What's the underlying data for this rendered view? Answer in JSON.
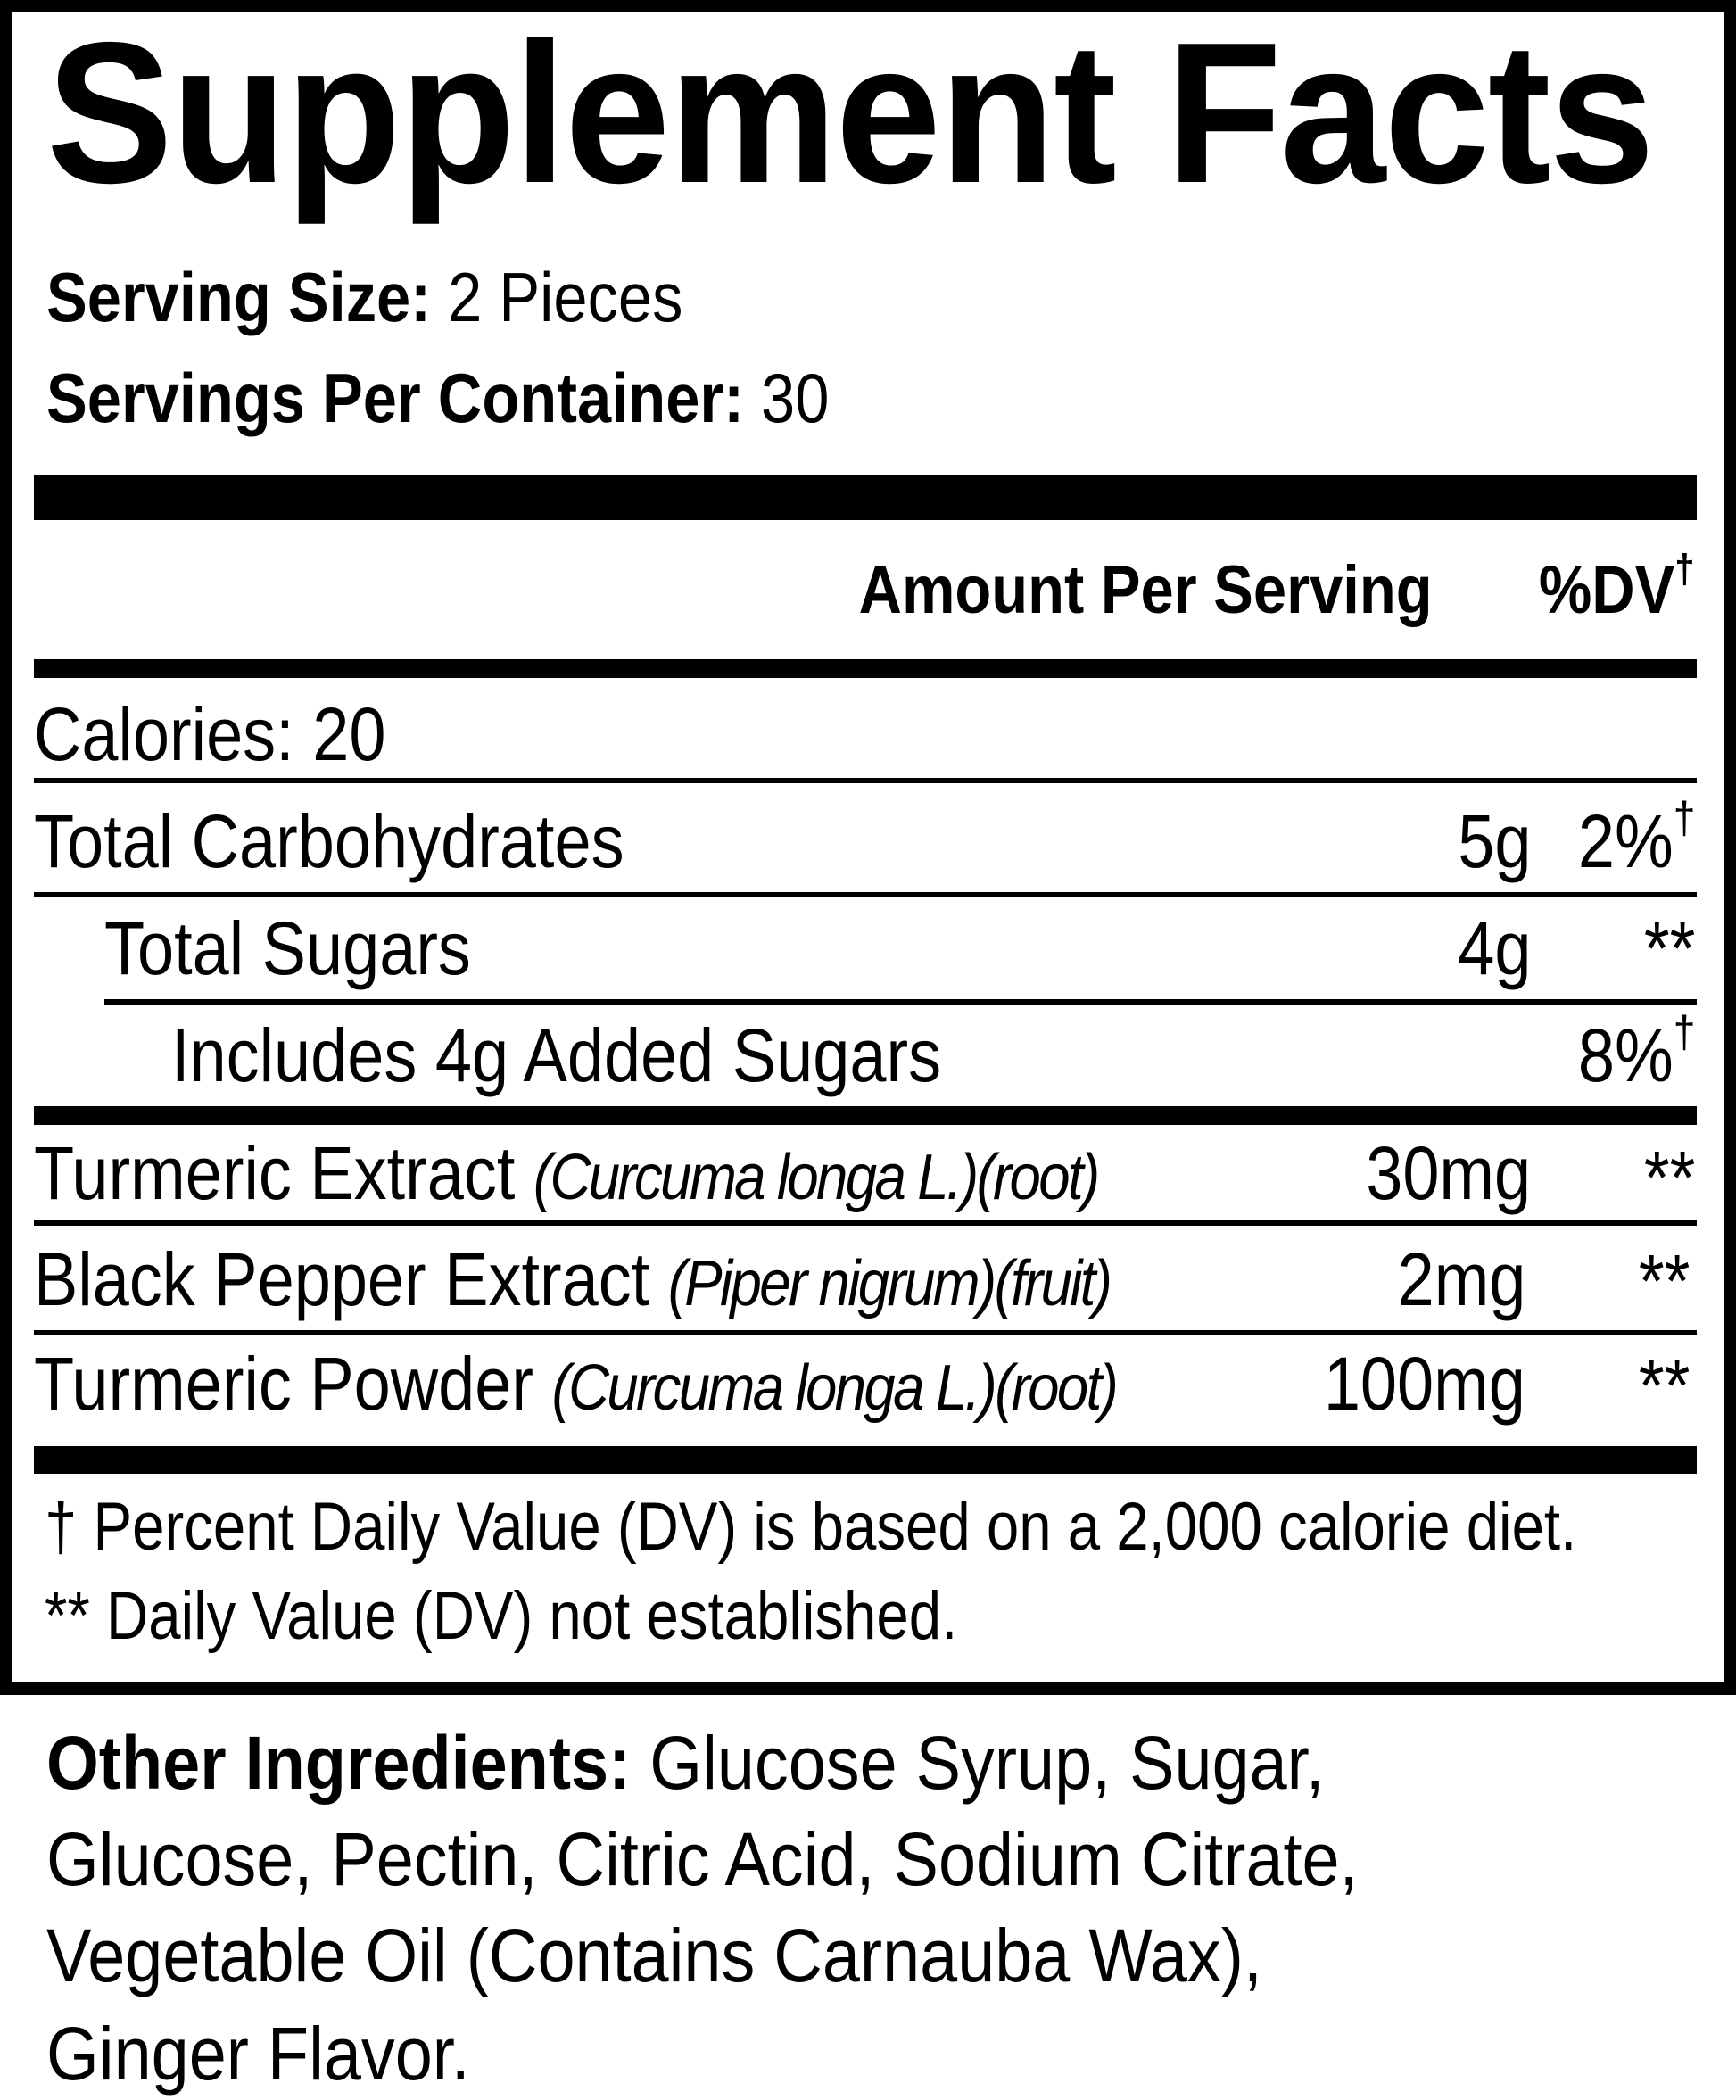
{
  "title": "Supplement Facts",
  "serving_size": {
    "label": "Serving Size:",
    "value": "2 Pieces"
  },
  "servings_per_container": {
    "label": "Servings Per Container:",
    "value": "30"
  },
  "header": {
    "amount": "Amount Per Serving",
    "dv": "%DV",
    "dv_mark": "†"
  },
  "calories": "Calories: 20",
  "rows": [
    {
      "name": "Total Carbohydrates",
      "source": "",
      "amount": "5g",
      "dv": "2%",
      "dv_mark": "†"
    },
    {
      "name": "Total Sugars",
      "source": "",
      "amount": "4g",
      "dv": "**",
      "dv_mark": ""
    },
    {
      "name": "Includes 4g Added Sugars",
      "source": "",
      "amount": "",
      "dv": "8%",
      "dv_mark": "†"
    },
    {
      "name": "Turmeric Extract",
      "source": "(Curcuma longa L.)(root)",
      "amount": "30mg",
      "dv": "**",
      "dv_mark": ""
    },
    {
      "name": "Black Pepper Extract",
      "source": "(Piper nigrum)(fruit)",
      "amount": "2mg",
      "dv": "**",
      "dv_mark": ""
    },
    {
      "name": "Turmeric Powder",
      "source": "(Curcuma longa L.)(root)",
      "amount": "100mg",
      "dv": "**",
      "dv_mark": ""
    }
  ],
  "footnotes": [
    "† Percent Daily Value (DV) is based on a 2,000 calorie diet.",
    "** Daily Value (DV) not established."
  ],
  "other_ingredients": {
    "label": "Other Ingredients:",
    "lines": [
      "Glucose Syrup, Sugar,",
      "Glucose, Pectin, Citric Acid, Sodium Citrate,",
      "Vegetable Oil (Contains Carnauba Wax),",
      "Ginger Flavor."
    ]
  }
}
